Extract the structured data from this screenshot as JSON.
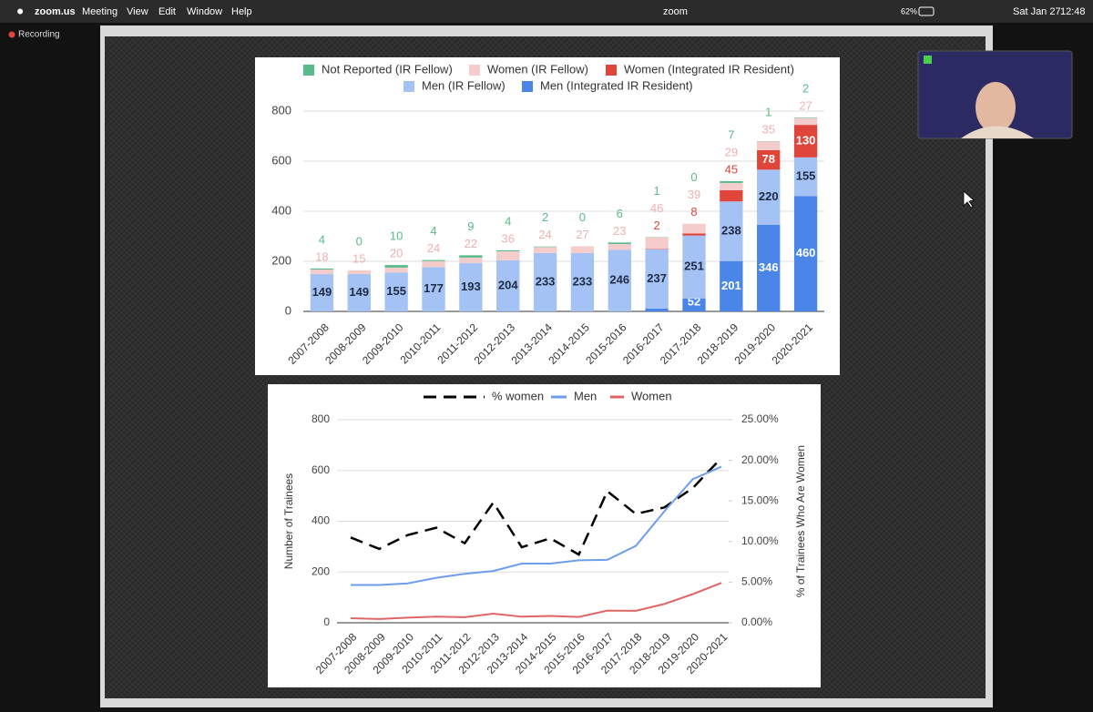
{
  "menu_bar": {
    "left": [
      "zoom.us",
      "Meeting",
      "View",
      "Edit",
      "Window",
      "Help"
    ],
    "right": {
      "app": "zoom",
      "battery": "62%",
      "date": "Sat Jan 27",
      "time": "12:48"
    }
  },
  "recording": "Recording",
  "chart_data": [
    {
      "type": "stacked-bar",
      "categories": [
        "2007-2008",
        "2008-2009",
        "2009-2010",
        "2010-2011",
        "2011-2012",
        "2012-2013",
        "2013-2014",
        "2014-2015",
        "2015-2016",
        "2016-2017",
        "2017-2018",
        "2018-2019",
        "2019-2020",
        "2020-2021"
      ],
      "series": [
        {
          "name": "Not Reported (IR Fellow)",
          "color": "#57bb8a",
          "values": [
            4,
            0,
            10,
            4,
            9,
            4,
            2,
            0,
            6,
            1,
            0,
            7,
            1,
            2
          ]
        },
        {
          "name": "Women (IR Fellow)",
          "color": "#f4cccc",
          "values": [
            18,
            15,
            20,
            24,
            22,
            36,
            24,
            27,
            23,
            46,
            39,
            29,
            35,
            27
          ]
        },
        {
          "name": "Women (Integrated IR Resident)",
          "color": "#e0453b",
          "values": [
            null,
            null,
            null,
            null,
            null,
            null,
            null,
            null,
            null,
            2,
            8,
            45,
            78,
            130
          ]
        },
        {
          "name": "Men (IR Fellow)",
          "color": "#a4c2f4",
          "values": [
            149,
            149,
            155,
            177,
            193,
            204,
            233,
            233,
            246,
            237,
            251,
            238,
            220,
            155
          ]
        },
        {
          "name": "Men (Integrated IR Resident)",
          "color": "#4a86e8",
          "values": [
            null,
            null,
            null,
            null,
            null,
            null,
            null,
            null,
            null,
            11,
            52,
            201,
            346,
            460
          ]
        }
      ],
      "ylim": [
        0,
        800
      ],
      "yticks": [
        0,
        200,
        400,
        600,
        800
      ],
      "grid": true
    },
    {
      "type": "line",
      "categories": [
        "2007-2008",
        "2008-2009",
        "2009-2010",
        "2010-2011",
        "2011-2012",
        "2012-2013",
        "2013-2014",
        "2014-2015",
        "2015-2016",
        "2016-2017",
        "2017-2018",
        "2018-2019",
        "2019-2020",
        "2020-2021"
      ],
      "series": [
        {
          "name": "% women",
          "color": "#000000",
          "dashed": true,
          "axis": "y2",
          "values": [
            10.5,
            9.1,
            10.8,
            11.7,
            9.8,
            14.8,
            9.3,
            10.4,
            8.4,
            16.2,
            13.4,
            14.2,
            16.6,
            20.3
          ]
        },
        {
          "name": "Men",
          "color": "#6d9eeb",
          "values": [
            149,
            149,
            155,
            177,
            193,
            204,
            233,
            233,
            246,
            248,
            303,
            439,
            566,
            615
          ]
        },
        {
          "name": "Women",
          "color": "#e06666",
          "values": [
            18,
            15,
            20,
            24,
            22,
            36,
            24,
            27,
            23,
            48,
            47,
            74,
            113,
            157
          ]
        }
      ],
      "y_label": "Number of Trainees",
      "y2_label": "% of Trainees Who Are Women",
      "ylim": [
        0,
        800
      ],
      "yticks": [
        0,
        200,
        400,
        600,
        800
      ],
      "y2lim": [
        0,
        25
      ],
      "y2ticks": [
        {
          "value": 0,
          "label": "0.00%"
        },
        {
          "value": 5,
          "label": "5.00%"
        },
        {
          "value": 10,
          "label": "10.00%"
        },
        {
          "value": 15,
          "label": "15.00%"
        },
        {
          "value": 20,
          "label": "20.00%"
        },
        {
          "value": 25,
          "label": "25.00%"
        }
      ],
      "grid": true
    }
  ]
}
